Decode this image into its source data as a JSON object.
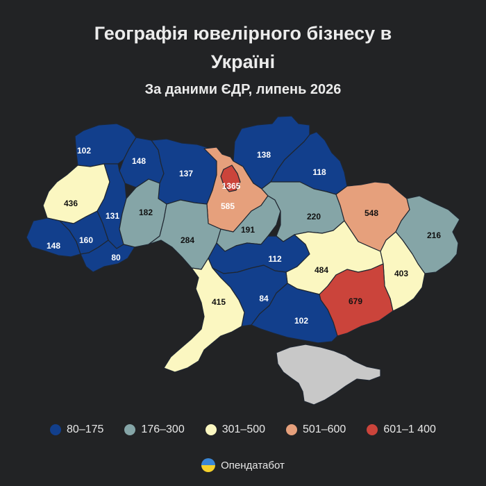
{
  "title_lines": [
    "Географія ювелірного бізнесу в",
    "Україні"
  ],
  "subtitle": "За даними ЄДР, липень 2026",
  "colors": {
    "background": "#222325",
    "c1": "#123f8c",
    "c2": "#85a5a7",
    "c3": "#fbf7c1",
    "c4": "#e6a07c",
    "c5": "#cb443b",
    "crimea": "#c8c8c8"
  },
  "legend": [
    {
      "label": "80–175",
      "color": "#123f8c"
    },
    {
      "label": "176–300",
      "color": "#85a5a7"
    },
    {
      "label": "301–500",
      "color": "#fbf7c1"
    },
    {
      "label": "501–600",
      "color": "#e6a07c"
    },
    {
      "label": "601–1 400",
      "color": "#cb443b"
    }
  ],
  "regions": [
    {
      "id": "volyn",
      "value": 102,
      "class": "c1"
    },
    {
      "id": "rivne",
      "value": 148,
      "class": "c1"
    },
    {
      "id": "zhytomyr",
      "value": 137,
      "class": "c1"
    },
    {
      "id": "kyiv-oblast",
      "value": 585,
      "class": "c4"
    },
    {
      "id": "kyiv-city",
      "value": 1365,
      "class": "c5"
    },
    {
      "id": "chernihiv",
      "value": 138,
      "class": "c1"
    },
    {
      "id": "sumy",
      "value": 118,
      "class": "c1"
    },
    {
      "id": "lviv",
      "value": 436,
      "class": "c3"
    },
    {
      "id": "ternopil",
      "value": 131,
      "class": "c1"
    },
    {
      "id": "khmelnytskyi",
      "value": 182,
      "class": "c2"
    },
    {
      "id": "zakarpattia",
      "value": 148,
      "class": "c1"
    },
    {
      "id": "ivano-frankivsk",
      "value": 160,
      "class": "c1"
    },
    {
      "id": "chernivtsi",
      "value": 80,
      "class": "c1"
    },
    {
      "id": "vinnytsia",
      "value": 284,
      "class": "c2"
    },
    {
      "id": "cherkasy",
      "value": 191,
      "class": "c2"
    },
    {
      "id": "poltava",
      "value": 220,
      "class": "c2"
    },
    {
      "id": "kharkiv",
      "value": 548,
      "class": "c4"
    },
    {
      "id": "luhansk",
      "value": 216,
      "class": "c2"
    },
    {
      "id": "kirovohrad",
      "value": 112,
      "class": "c1"
    },
    {
      "id": "dnipropetrovsk",
      "value": 484,
      "class": "c3"
    },
    {
      "id": "donetsk",
      "value": 403,
      "class": "c3"
    },
    {
      "id": "odesa",
      "value": 415,
      "class": "c3"
    },
    {
      "id": "mykolaiv",
      "value": 84,
      "class": "c1"
    },
    {
      "id": "zaporizhzhia",
      "value": 679,
      "class": "c5"
    },
    {
      "id": "kherson",
      "value": 102,
      "class": "c1"
    },
    {
      "id": "crimea",
      "class": "crimea"
    }
  ],
  "brand": {
    "name": "Опендатабот",
    "logo_icon": "ukraine-flag-circle-icon"
  }
}
